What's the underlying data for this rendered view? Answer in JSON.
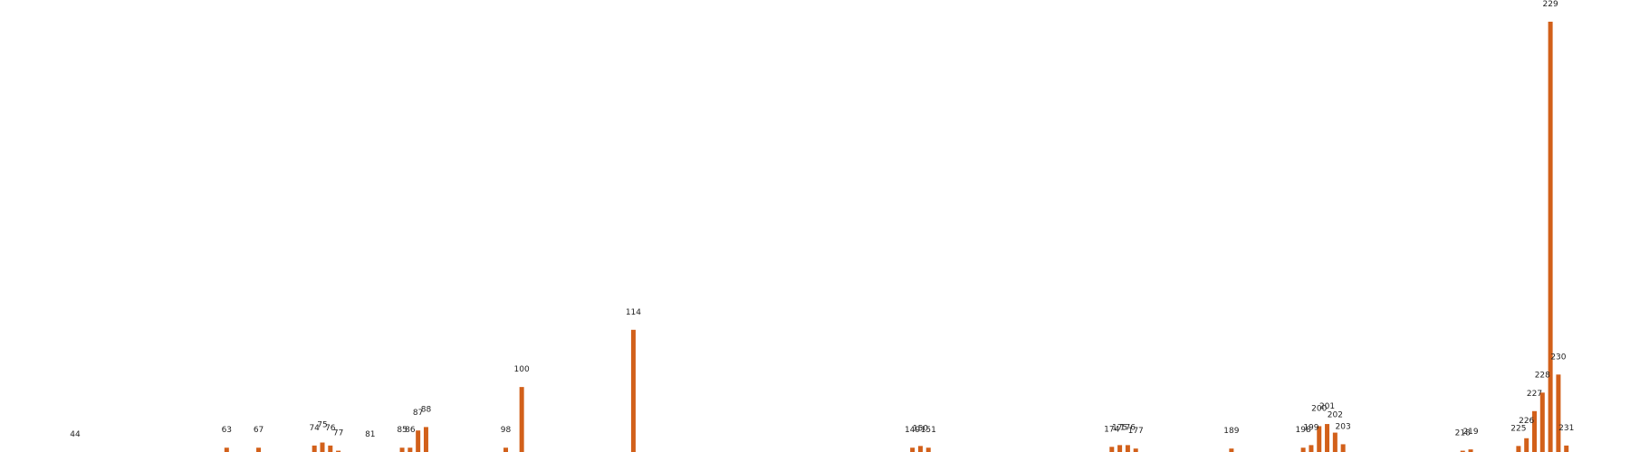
{
  "chart_data": {
    "type": "bar",
    "title": "",
    "xlabel": "",
    "ylabel": "",
    "bar_color": "#d2601a",
    "label_color": "#222222",
    "background": "#ffffff",
    "grid": false,
    "axes_visible": false,
    "xlim": [
      35,
      240
    ],
    "ylim": [
      0,
      100
    ],
    "points": [
      {
        "x": 44,
        "value": 0.0,
        "label": "44"
      },
      {
        "x": 63,
        "value": 1.0,
        "label": "63"
      },
      {
        "x": 67,
        "value": 1.0,
        "label": "67"
      },
      {
        "x": 74,
        "value": 1.5,
        "label": "74"
      },
      {
        "x": 75,
        "value": 2.2,
        "label": "75"
      },
      {
        "x": 76,
        "value": 1.5,
        "label": "76"
      },
      {
        "x": 77,
        "value": 0.3,
        "label": "77"
      },
      {
        "x": 81,
        "value": 0.0,
        "label": "81"
      },
      {
        "x": 85,
        "value": 1.0,
        "label": "85"
      },
      {
        "x": 86,
        "value": 1.0,
        "label": "86"
      },
      {
        "x": 87,
        "value": 5.0,
        "label": "87"
      },
      {
        "x": 88,
        "value": 5.8,
        "label": "88"
      },
      {
        "x": 98,
        "value": 1.0,
        "label": "98"
      },
      {
        "x": 100,
        "value": 15.1,
        "label": "100"
      },
      {
        "x": 114,
        "value": 28.4,
        "label": "114"
      },
      {
        "x": 149,
        "value": 1.0,
        "label": "149"
      },
      {
        "x": 150,
        "value": 1.4,
        "label": "150"
      },
      {
        "x": 151,
        "value": 1.0,
        "label": "151"
      },
      {
        "x": 174,
        "value": 1.2,
        "label": "174"
      },
      {
        "x": 175,
        "value": 1.6,
        "label": "175"
      },
      {
        "x": 176,
        "value": 1.6,
        "label": "176"
      },
      {
        "x": 177,
        "value": 0.8,
        "label": "177"
      },
      {
        "x": 189,
        "value": 0.8,
        "label": "189"
      },
      {
        "x": 198,
        "value": 1.0,
        "label": "198"
      },
      {
        "x": 199,
        "value": 1.6,
        "label": "199"
      },
      {
        "x": 200,
        "value": 6.0,
        "label": "200"
      },
      {
        "x": 201,
        "value": 6.5,
        "label": "201"
      },
      {
        "x": 202,
        "value": 4.5,
        "label": "202"
      },
      {
        "x": 203,
        "value": 1.8,
        "label": "203"
      },
      {
        "x": 218,
        "value": 0.3,
        "label": "218"
      },
      {
        "x": 219,
        "value": 0.6,
        "label": "219"
      },
      {
        "x": 225,
        "value": 1.4,
        "label": "225"
      },
      {
        "x": 226,
        "value": 3.2,
        "label": "226"
      },
      {
        "x": 227,
        "value": 9.5,
        "label": "227"
      },
      {
        "x": 228,
        "value": 13.8,
        "label": "228"
      },
      {
        "x": 229,
        "value": 100.0,
        "label": "229"
      },
      {
        "x": 230,
        "value": 18.0,
        "label": "230"
      },
      {
        "x": 231,
        "value": 1.5,
        "label": "231"
      }
    ]
  }
}
